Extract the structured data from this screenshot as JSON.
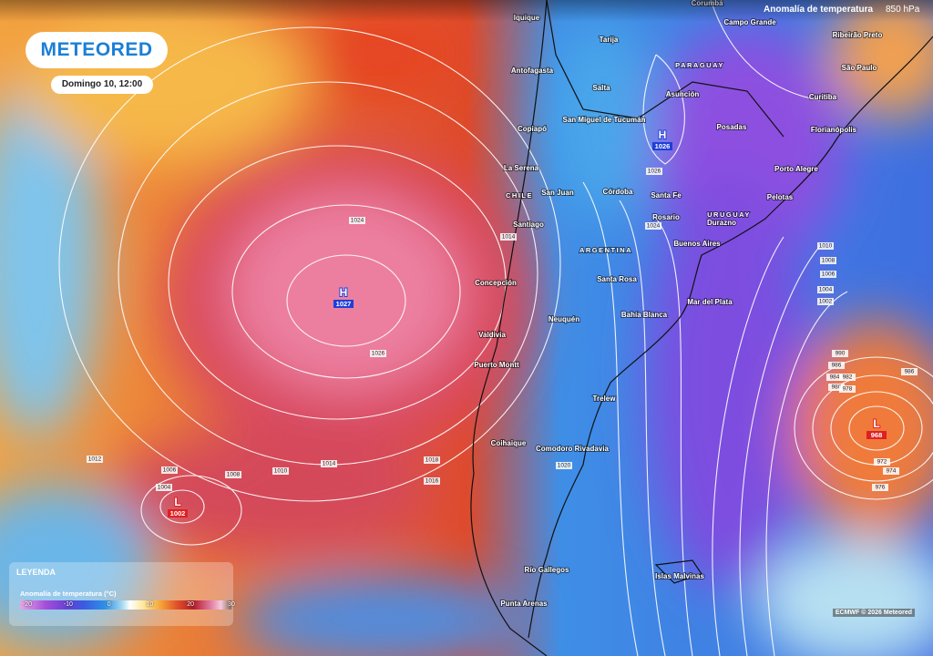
{
  "header": {
    "logo": "METEORED",
    "datetime": "Domingo 10, 12:00",
    "layer": "Anomalía de temperatura",
    "level": "850 hPa"
  },
  "legend": {
    "title": "LEYENDA",
    "subtitle": "Anomalía de temperatura (°C)",
    "ticks": [
      -20,
      -10,
      0,
      10,
      20,
      30
    ]
  },
  "credit": "ECMWF © 2026 Meteored",
  "countries": [
    "PARAGUAY",
    "URUGUAY",
    "ARGENTINA",
    "CHILE"
  ],
  "cities": [
    "Iquique",
    "Antofagasta",
    "Copiapó",
    "La Serena",
    "Santiago",
    "Concepción",
    "Valdivia",
    "Puerto Montt",
    "Coihaique",
    "Tarija",
    "Salta",
    "San Miguel de Tucumán",
    "San Juan",
    "Córdoba",
    "Santa Fe",
    "Rosario",
    "Buenos Aires",
    "Santa Rosa",
    "Neuquén",
    "Bahía Blanca",
    "Mar del Plata",
    "Trelew",
    "Comodoro Rivadavia",
    "Río Gallegos",
    "Punta Arenas",
    "Asunción",
    "Posadas",
    "Porto Alegre",
    "Pelotas",
    "Florianópolis",
    "Curitiba",
    "São Paulo",
    "Ribeirão Preto",
    "Campo Grande",
    "Corumbá",
    "Durazno",
    "Islas Malvinas"
  ],
  "pressure_centers": [
    {
      "kind": "H",
      "value": 1027
    },
    {
      "kind": "H",
      "value": 1026
    },
    {
      "kind": "L",
      "value": 1002
    },
    {
      "kind": "L",
      "value": 968
    }
  ],
  "isobar_labels": [
    1024,
    1026,
    1014,
    1026,
    1024,
    1012,
    1006,
    1004,
    1008,
    1010,
    1014,
    1018,
    1016,
    1020,
    1010,
    1008,
    1006,
    1004,
    1002,
    990,
    986,
    984,
    982,
    980,
    978,
    972,
    974,
    976,
    986
  ]
}
